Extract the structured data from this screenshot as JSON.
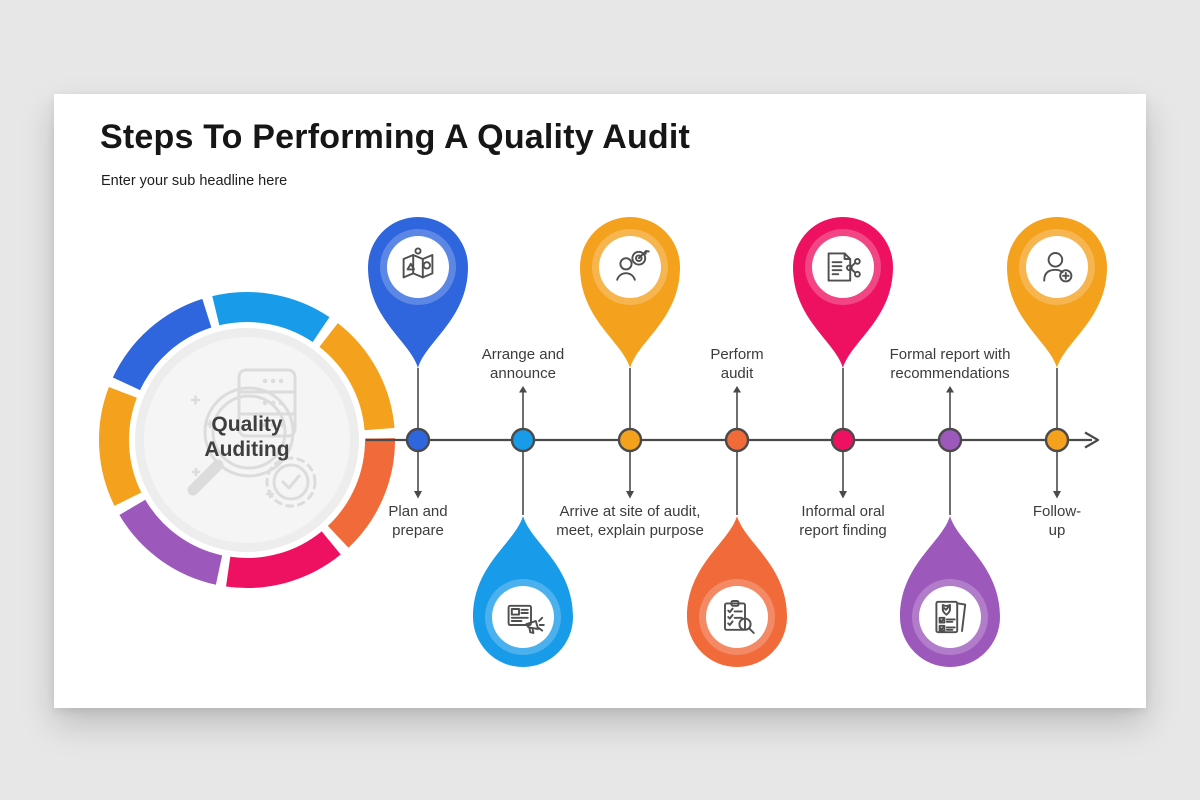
{
  "header": {
    "title": "Steps To Performing A Quality Audit",
    "subtitle": "Enter your sub headline here"
  },
  "center": {
    "label": "Quality Auditing",
    "icon": "quality-auditing-watermark-icon",
    "watermark_color": "#dcdcdc"
  },
  "timeline": {
    "direction": "left-to-right",
    "line_color": "#4a4a4a",
    "arrow": "right-chevron"
  },
  "palette": {
    "card_background": "#ffffff",
    "page_background": "#e7e7e7",
    "label_text": "#3c3c3c",
    "title_text": "#161616",
    "donut_inner_disc": "#ededed",
    "donut_inner_disc_light": "#f5f5f5"
  },
  "steps": [
    {
      "n": 1,
      "label": "Plan and prepare",
      "color": "#2F66DE",
      "icon": "map-plan-icon",
      "pin": "top",
      "label_side": "below"
    },
    {
      "n": 2,
      "label": "Arrange and announce",
      "color": "#189BE9",
      "icon": "announcement-news-icon",
      "pin": "bottom",
      "label_side": "above"
    },
    {
      "n": 3,
      "label": "Arrive at site of audit, meet, explain purpose",
      "color": "#F4A11D",
      "icon": "person-target-icon",
      "pin": "top",
      "label_side": "below"
    },
    {
      "n": 4,
      "label": "Perform audit",
      "color": "#F16A3A",
      "icon": "clipboard-magnifier-icon",
      "pin": "bottom",
      "label_side": "above"
    },
    {
      "n": 5,
      "label": "Informal oral report finding",
      "color": "#EF1161",
      "icon": "report-share-icon",
      "pin": "top",
      "label_side": "below"
    },
    {
      "n": 6,
      "label": "Formal report with recommendations",
      "color": "#9C58BA",
      "icon": "checklist-shield-icon",
      "pin": "bottom",
      "label_side": "above"
    },
    {
      "n": 7,
      "label": "Follow-up",
      "color": "#F4A11D",
      "icon": "add-user-icon",
      "pin": "top",
      "label_side": "below"
    }
  ]
}
